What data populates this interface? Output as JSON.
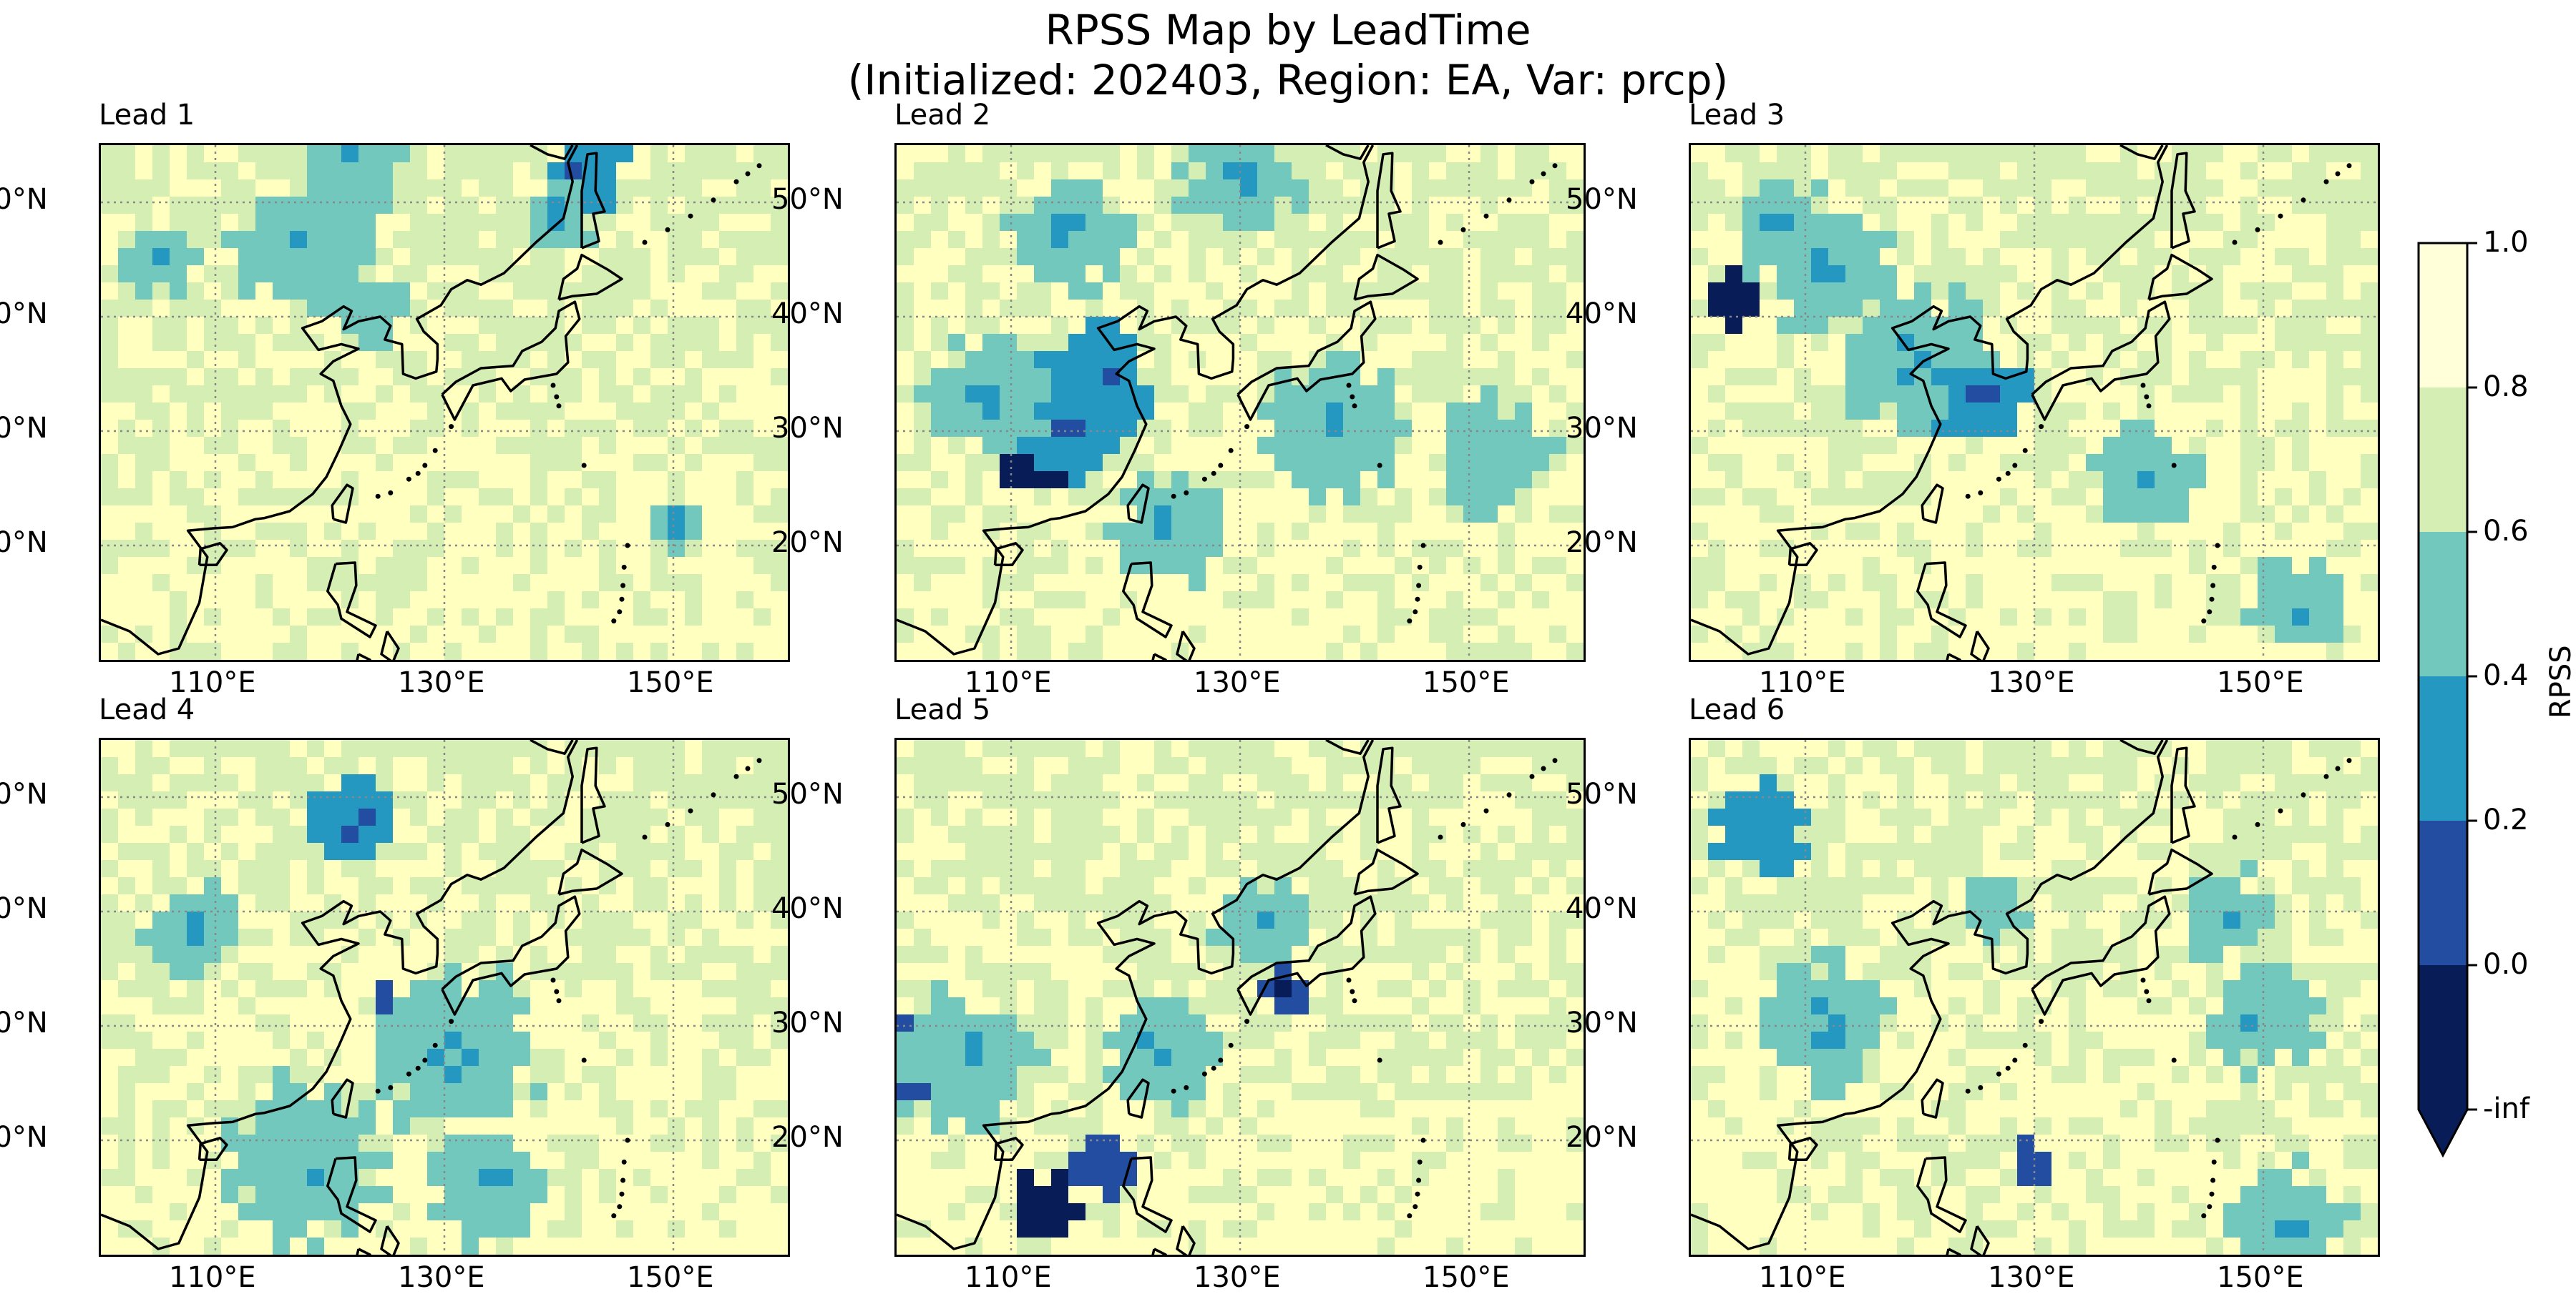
{
  "title": {
    "line1": "RPSS Map by LeadTime",
    "line2": "(Initialized: 202403, Region: EA, Var: prcp)"
  },
  "panels": [
    {
      "label": "Lead 1"
    },
    {
      "label": "Lead 2"
    },
    {
      "label": "Lead 3"
    },
    {
      "label": "Lead 4"
    },
    {
      "label": "Lead 5"
    },
    {
      "label": "Lead 6"
    }
  ],
  "axes": {
    "lat_ticks": [
      "50°N",
      "40°N",
      "30°N",
      "20°N"
    ],
    "lon_ticks": [
      "110°E",
      "130°E",
      "150°E"
    ]
  },
  "colorbar": {
    "label": "RPSS",
    "ticks": [
      "1.0",
      "0.8",
      "0.6",
      "0.4",
      "0.2",
      "0.0",
      "-inf"
    ],
    "colors": [
      "#ffffd9",
      "#d5eeb3",
      "#73c8bd",
      "#2498c1",
      "#234da0",
      "#081d58"
    ]
  },
  "chart_data": {
    "type": "heatmap",
    "variable": "prcp",
    "initialized": "202403",
    "region": "EA",
    "lon_range": [
      100,
      160
    ],
    "lat_range": [
      10,
      55
    ],
    "grid": true,
    "bins": [
      {
        "range": "-inf to 0.0",
        "color": "#081d58"
      },
      {
        "range": "0.0 to 0.2",
        "color": "#234da0"
      },
      {
        "range": "0.2 to 0.4",
        "color": "#2498c1"
      },
      {
        "range": "0.4 to 0.6",
        "color": "#73c8bd"
      },
      {
        "range": "0.6 to 0.8",
        "color": "#d5eeb3"
      },
      {
        "range": "0.8 to 1.0",
        "color": "#ffffd9"
      }
    ],
    "leads": [
      1,
      2,
      3,
      4,
      5,
      6
    ]
  }
}
